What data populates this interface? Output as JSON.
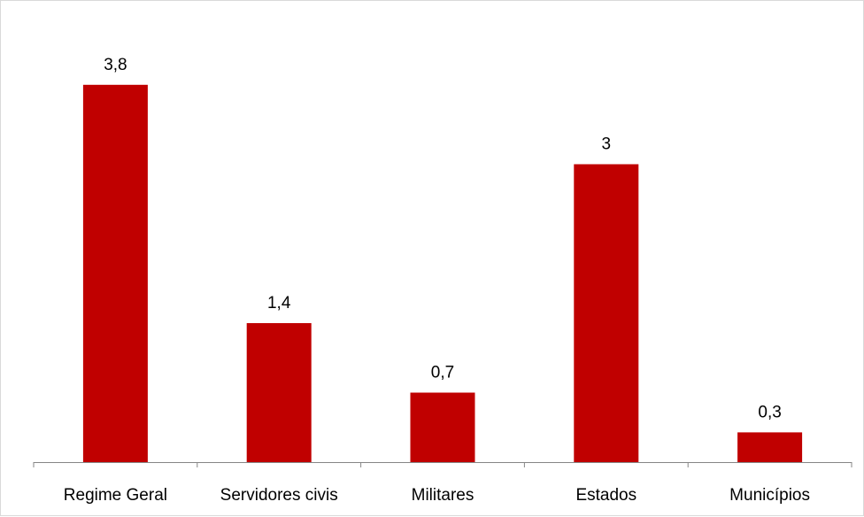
{
  "chart_data": {
    "type": "bar",
    "categories": [
      "Regime Geral",
      "Servidores civis",
      "Militares",
      "Estados",
      "Municípios"
    ],
    "values": [
      3.8,
      1.4,
      0.7,
      3,
      0.3
    ],
    "value_labels": [
      "3,8",
      "1,4",
      "0,7",
      "3",
      "0,3"
    ],
    "title": "",
    "xlabel": "",
    "ylabel": "",
    "ylim": [
      0,
      4
    ],
    "grid": false,
    "legend": "none",
    "bar_color": "#c00000"
  }
}
